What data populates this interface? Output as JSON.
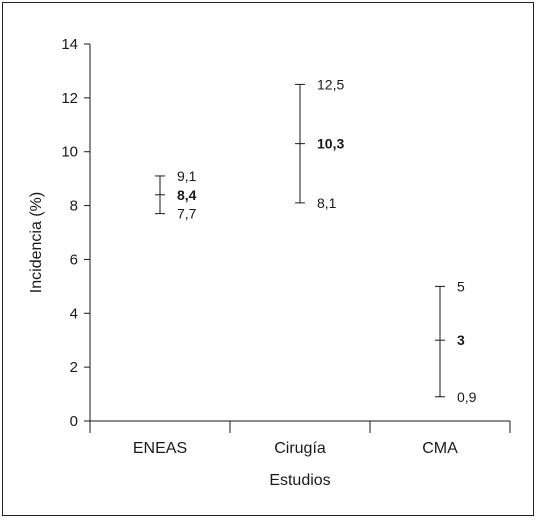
{
  "chart_data": {
    "type": "errorbar",
    "xlabel": "Estudios",
    "ylabel": "Incidencia (%)",
    "ylim": [
      0,
      14
    ],
    "yticks": [
      0,
      2,
      4,
      6,
      8,
      10,
      12,
      14
    ],
    "ytick_labels": [
      "0",
      "2",
      "4",
      "6",
      "8",
      "10",
      "12",
      "14"
    ],
    "categories": [
      "ENEAS",
      "Cirugía",
      "CMA"
    ],
    "points": [
      {
        "category": "ENEAS",
        "value": 8.4,
        "low": 7.7,
        "high": 9.1,
        "value_label": "8,4",
        "low_label": "7,7",
        "high_label": "9,1"
      },
      {
        "category": "Cirugía",
        "value": 10.3,
        "low": 8.1,
        "high": 12.5,
        "value_label": "10,3",
        "low_label": "8,1",
        "high_label": "12,5"
      },
      {
        "category": "CMA",
        "value": 3,
        "low": 0.9,
        "high": 5,
        "value_label": "3",
        "low_label": "0,9",
        "high_label": "5"
      }
    ],
    "grid": false,
    "legend": "none"
  }
}
